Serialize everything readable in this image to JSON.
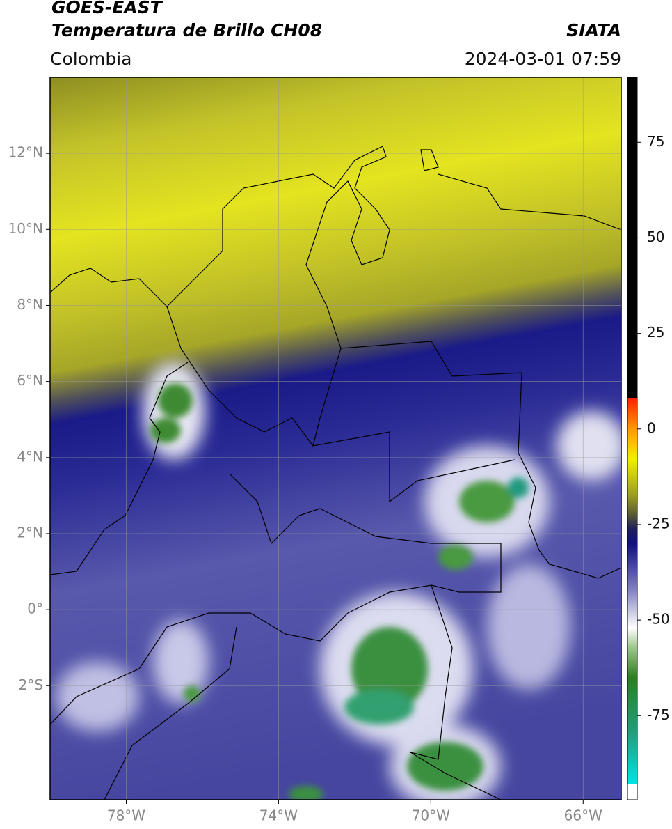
{
  "header": {
    "line1": "GOES-EAST",
    "line2": "Temperatura de Brillo CH08",
    "brand": "SIATA",
    "region": "Colombia",
    "timestamp": "2024-03-01 07:59"
  },
  "map": {
    "lonlim": [
      -80,
      -65
    ],
    "latlim": [
      -5,
      14
    ],
    "lonticks": [
      {
        "value": -78,
        "label": "78°W"
      },
      {
        "value": -74,
        "label": "74°W"
      },
      {
        "value": -70,
        "label": "70°W"
      },
      {
        "value": -66,
        "label": "66°W"
      }
    ],
    "latticks": [
      {
        "value": 12,
        "label": "12°N"
      },
      {
        "value": 10,
        "label": "10°N"
      },
      {
        "value": 8,
        "label": "8°N"
      },
      {
        "value": 6,
        "label": "6°N"
      },
      {
        "value": 4,
        "label": "4°N"
      },
      {
        "value": 2,
        "label": "2°N"
      },
      {
        "value": 0,
        "label": "0°"
      },
      {
        "value": -2,
        "label": "2°S"
      }
    ],
    "grid": true
  },
  "colorbar": {
    "lim": [
      -97,
      92
    ],
    "ticks": [
      75,
      50,
      25,
      0,
      -25,
      -50,
      -75
    ],
    "colormap": [
      {
        "value": -97,
        "color": "#ffffff"
      },
      {
        "value": -93,
        "color": "#ffffff"
      },
      {
        "value": -92.9,
        "color": "#00e5e5"
      },
      {
        "value": -80,
        "color": "#20a080"
      },
      {
        "value": -65,
        "color": "#2e7d20"
      },
      {
        "value": -57,
        "color": "#a0c890"
      },
      {
        "value": -52,
        "color": "#ffffff"
      },
      {
        "value": -42,
        "color": "#8080c0"
      },
      {
        "value": -30,
        "color": "#101080"
      },
      {
        "value": -26,
        "color": "#20205a"
      },
      {
        "value": -22,
        "color": "#606030"
      },
      {
        "value": -17,
        "color": "#a0a020"
      },
      {
        "value": -8,
        "color": "#f0f000"
      },
      {
        "value": 0,
        "color": "#ff9900"
      },
      {
        "value": 8,
        "color": "#ff2000"
      },
      {
        "value": 8.1,
        "color": "#000000"
      },
      {
        "value": 92,
        "color": "#000000"
      }
    ]
  }
}
